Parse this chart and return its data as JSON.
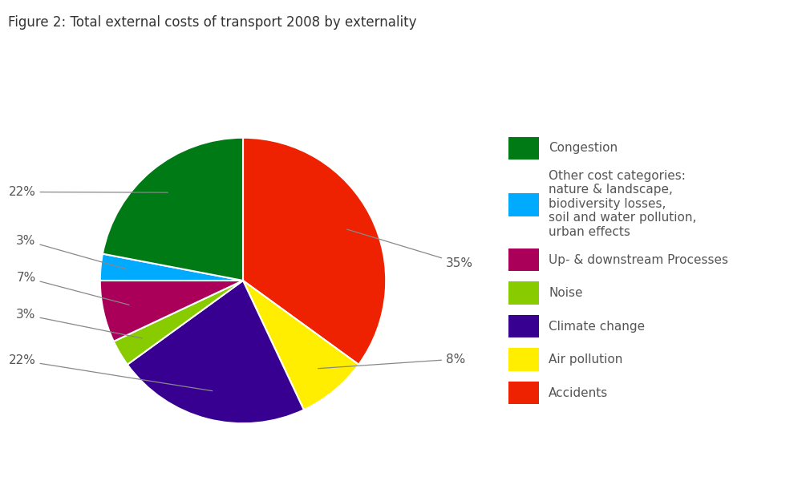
{
  "title": "Figure 2: Total external costs of transport 2008 by externality",
  "slices": [
    {
      "label": "Accidents",
      "pct": 35,
      "color": "#EE2200"
    },
    {
      "label": "Air pollution",
      "pct": 8,
      "color": "#FFEE00"
    },
    {
      "label": "Climate change",
      "pct": 22,
      "color": "#380090"
    },
    {
      "label": "Noise",
      "pct": 3,
      "color": "#88CC00"
    },
    {
      "label": "Up- & downstream Processes",
      "pct": 7,
      "color": "#AA005A"
    },
    {
      "label": "Other cost categories",
      "pct": 3,
      "color": "#00AAFF"
    },
    {
      "label": "Congestion",
      "pct": 22,
      "color": "#007A14"
    }
  ],
  "legend_labels": [
    "Congestion",
    "Other cost categories:\nnature & landscape,\nbiodiversity losses,\nsoil and water pollution,\nurban effects",
    "Up- & downstream Processes",
    "Noise",
    "Climate change",
    "Air pollution",
    "Accidents"
  ],
  "legend_colors": [
    "#007A14",
    "#00AAFF",
    "#AA005A",
    "#88CC00",
    "#380090",
    "#FFEE00",
    "#EE2200"
  ],
  "bg_color": "#FFFFFF",
  "title_fontsize": 12,
  "label_fontsize": 11,
  "annot_specs": [
    {
      "label": "Congestion",
      "text": "22%",
      "side": "left",
      "yoff": 0.62
    },
    {
      "label": "Other cost categories",
      "text": "3%",
      "side": "left",
      "yoff": 0.28
    },
    {
      "label": "Up- & downstream Processes",
      "text": "7%",
      "side": "left",
      "yoff": 0.02
    },
    {
      "label": "Noise",
      "text": "3%",
      "side": "left",
      "yoff": -0.24
    },
    {
      "label": "Climate change",
      "text": "22%",
      "side": "left",
      "yoff": -0.56
    },
    {
      "label": "Air pollution",
      "text": "8%",
      "side": "right",
      "yoff": -0.55
    },
    {
      "label": "Accidents",
      "text": "35%",
      "side": "right",
      "yoff": 0.12
    }
  ]
}
